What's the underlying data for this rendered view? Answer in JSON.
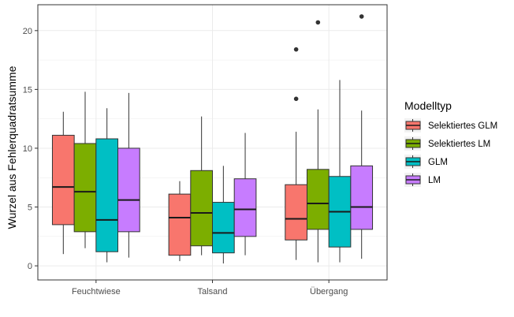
{
  "chart_data": {
    "type": "boxplot",
    "title": "",
    "xlabel": "",
    "ylabel": "Wurzel aus Fehlerquadratsumme",
    "ylim": [
      -1.2,
      22.2
    ],
    "yticks": [
      0,
      5,
      10,
      15,
      20
    ],
    "grid": true,
    "legend_position": "right",
    "legend_title": "Modelltyp",
    "categories": [
      "Feuchtwiese",
      "Talsand",
      "Übergang"
    ],
    "series": [
      {
        "name": "Selektiertes GLM",
        "color": "#F8766D",
        "boxes": [
          {
            "min": 1.0,
            "q1": 3.5,
            "median": 6.7,
            "q3": 11.1,
            "max": 13.1,
            "outliers": []
          },
          {
            "min": 0.4,
            "q1": 0.9,
            "median": 4.1,
            "q3": 6.1,
            "max": 7.2,
            "outliers": []
          },
          {
            "min": 0.5,
            "q1": 2.2,
            "median": 4.0,
            "q3": 6.9,
            "max": 11.4,
            "outliers": [
              14.2,
              18.4
            ]
          }
        ]
      },
      {
        "name": "Selektiertes LM",
        "color": "#7CAE00",
        "boxes": [
          {
            "min": 1.5,
            "q1": 2.9,
            "median": 6.3,
            "q3": 10.4,
            "max": 14.8,
            "outliers": []
          },
          {
            "min": 0.9,
            "q1": 1.7,
            "median": 4.5,
            "q3": 8.1,
            "max": 12.7,
            "outliers": []
          },
          {
            "min": 0.3,
            "q1": 3.1,
            "median": 5.3,
            "q3": 8.2,
            "max": 13.3,
            "outliers": [
              20.7
            ]
          }
        ]
      },
      {
        "name": "GLM",
        "color": "#00BFC4",
        "boxes": [
          {
            "min": 0.3,
            "q1": 1.2,
            "median": 3.9,
            "q3": 10.8,
            "max": 13.4,
            "outliers": []
          },
          {
            "min": 0.2,
            "q1": 1.1,
            "median": 2.8,
            "q3": 5.4,
            "max": 8.5,
            "outliers": []
          },
          {
            "min": 0.3,
            "q1": 1.6,
            "median": 4.6,
            "q3": 7.6,
            "max": 15.8,
            "outliers": []
          }
        ]
      },
      {
        "name": "LM",
        "color": "#C77CFF",
        "boxes": [
          {
            "min": 0.7,
            "q1": 2.9,
            "median": 5.6,
            "q3": 10.0,
            "max": 14.7,
            "outliers": []
          },
          {
            "min": 0.9,
            "q1": 2.5,
            "median": 4.8,
            "q3": 7.4,
            "max": 11.3,
            "outliers": []
          },
          {
            "min": 0.6,
            "q1": 3.1,
            "median": 5.0,
            "q3": 8.5,
            "max": 13.2,
            "outliers": [
              21.2
            ]
          }
        ]
      }
    ]
  }
}
